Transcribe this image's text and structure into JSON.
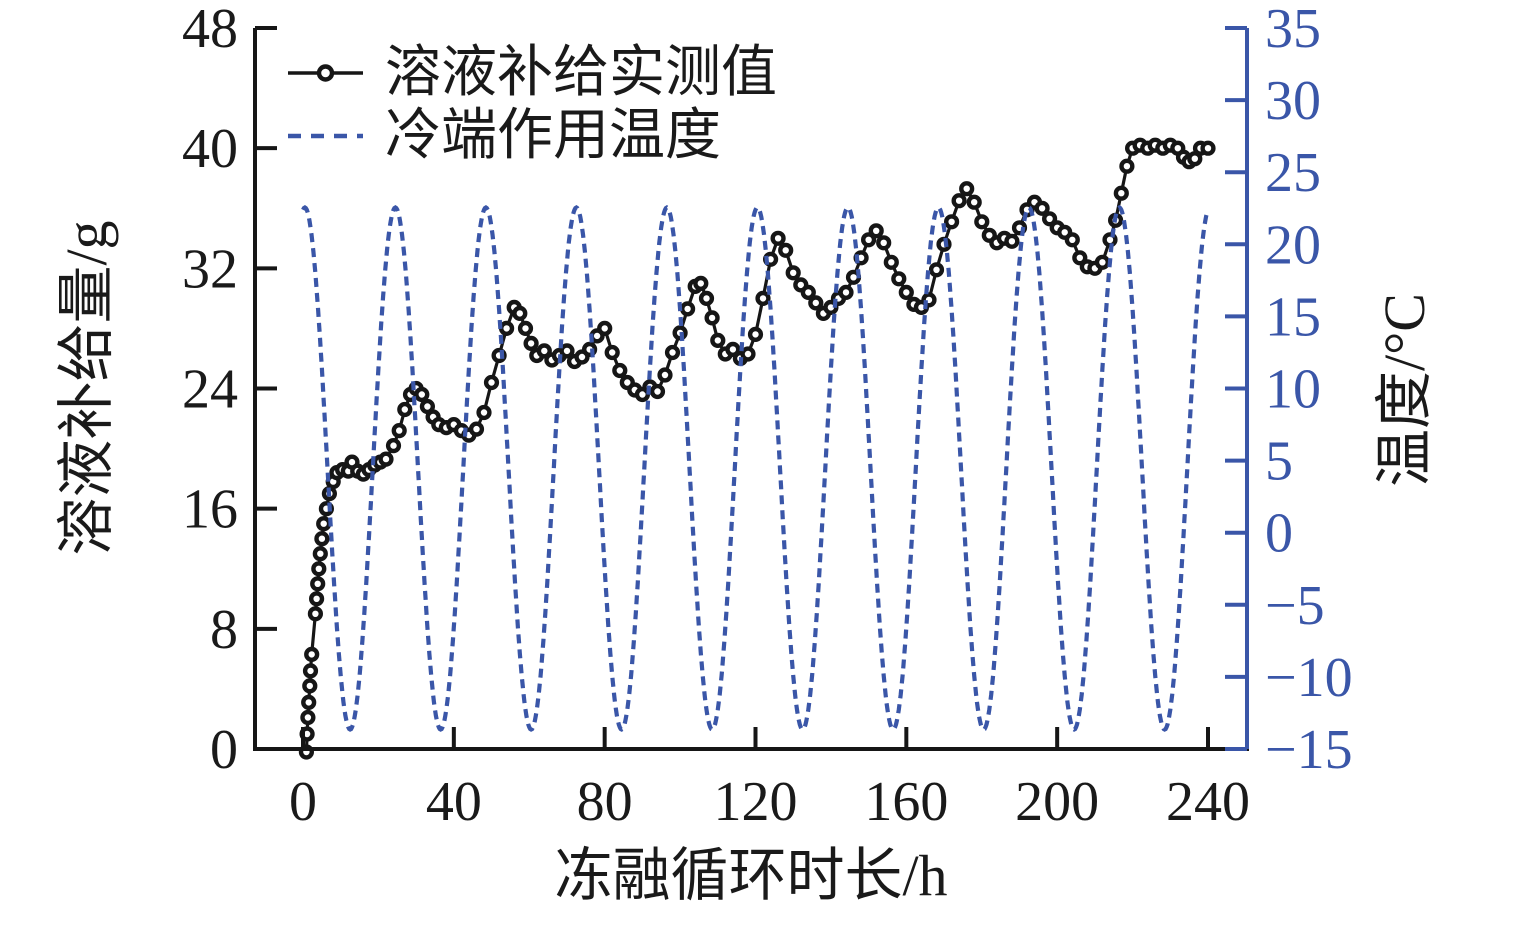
{
  "figure": {
    "background": "#ffffff",
    "accent_blue": "#3a56a8",
    "line_black": "#161616"
  },
  "chart_data": {
    "type": "line",
    "title": "",
    "xlabel": "冻融循环时长/h",
    "ylabel_left": "溶液补给量/g",
    "ylabel_right": "温度/°C",
    "xlim": [
      -12.7,
      250.4
    ],
    "ylim_left": [
      0,
      48
    ],
    "ylim_right": [
      -15,
      35
    ],
    "x_ticks": [
      0,
      40,
      80,
      120,
      160,
      200,
      240
    ],
    "y_left_ticks": [
      0,
      8,
      16,
      24,
      32,
      40,
      48
    ],
    "y_right_ticks": [
      -15,
      -10,
      -5,
      0,
      5,
      10,
      15,
      20,
      25,
      30,
      35
    ],
    "grid": false,
    "legend_position": "upper-left-inside",
    "series": [
      {
        "name": "溶液补给实测值",
        "axis": "left",
        "style": "solid-line-open-circle-markers",
        "color": "#161616",
        "points": [
          [
            0.9,
            -0.2
          ],
          [
            1.1,
            1.0
          ],
          [
            1.3,
            2.1
          ],
          [
            1.5,
            3.1
          ],
          [
            1.8,
            4.2
          ],
          [
            2.0,
            5.2
          ],
          [
            2.3,
            6.3
          ],
          [
            3.3,
            9.0
          ],
          [
            3.6,
            10.0
          ],
          [
            3.9,
            11.0
          ],
          [
            4.2,
            12.0
          ],
          [
            4.6,
            13.0
          ],
          [
            5.0,
            14.0
          ],
          [
            5.5,
            15.0
          ],
          [
            6.2,
            16.0
          ],
          [
            7.0,
            17.0
          ],
          [
            8.0,
            17.8
          ],
          [
            9.0,
            18.4
          ],
          [
            10.5,
            18.6
          ],
          [
            12.0,
            18.5
          ],
          [
            13.0,
            19.1
          ],
          [
            14.5,
            18.5
          ],
          [
            16.0,
            18.3
          ],
          [
            17.5,
            18.6
          ],
          [
            19.0,
            18.9
          ],
          [
            20.5,
            19.1
          ],
          [
            22.0,
            19.3
          ],
          [
            24.0,
            20.2
          ],
          [
            25.5,
            21.2
          ],
          [
            27.0,
            22.6
          ],
          [
            28.5,
            23.6
          ],
          [
            30.0,
            24.0
          ],
          [
            31.5,
            23.6
          ],
          [
            33.0,
            22.8
          ],
          [
            34.5,
            22.1
          ],
          [
            36.0,
            21.6
          ],
          [
            38.0,
            21.4
          ],
          [
            40.0,
            21.6
          ],
          [
            42.0,
            21.2
          ],
          [
            44.0,
            20.9
          ],
          [
            46.0,
            21.3
          ],
          [
            48.0,
            22.4
          ],
          [
            50.0,
            24.4
          ],
          [
            52.0,
            26.2
          ],
          [
            54.0,
            28.0
          ],
          [
            56.0,
            29.4
          ],
          [
            57.5,
            29.0
          ],
          [
            59.0,
            28.0
          ],
          [
            60.5,
            27.0
          ],
          [
            62.0,
            26.2
          ],
          [
            64.0,
            26.5
          ],
          [
            66.0,
            25.9
          ],
          [
            68.0,
            26.2
          ],
          [
            70.0,
            26.5
          ],
          [
            72.0,
            25.8
          ],
          [
            74.0,
            26.1
          ],
          [
            76.0,
            26.6
          ],
          [
            78.0,
            27.5
          ],
          [
            80.0,
            28.0
          ],
          [
            82.0,
            26.4
          ],
          [
            84.0,
            25.2
          ],
          [
            86.0,
            24.4
          ],
          [
            88.0,
            23.9
          ],
          [
            90.0,
            23.6
          ],
          [
            92.0,
            24.1
          ],
          [
            94.0,
            23.8
          ],
          [
            96.0,
            24.9
          ],
          [
            98.0,
            26.4
          ],
          [
            100.0,
            27.7
          ],
          [
            102.0,
            29.3
          ],
          [
            104.0,
            30.8
          ],
          [
            105.5,
            31.0
          ],
          [
            107.0,
            30.0
          ],
          [
            108.5,
            28.7
          ],
          [
            110.0,
            27.2
          ],
          [
            112.0,
            26.3
          ],
          [
            114.0,
            26.6
          ],
          [
            116.0,
            26.0
          ],
          [
            118.0,
            26.3
          ],
          [
            120.0,
            27.6
          ],
          [
            122.0,
            30.0
          ],
          [
            124.0,
            32.6
          ],
          [
            126.0,
            34.0
          ],
          [
            128.0,
            33.2
          ],
          [
            130.0,
            31.7
          ],
          [
            132.0,
            30.9
          ],
          [
            134.0,
            30.4
          ],
          [
            136.0,
            29.7
          ],
          [
            138.0,
            29.0
          ],
          [
            140.0,
            29.4
          ],
          [
            142.0,
            30.0
          ],
          [
            144.0,
            30.4
          ],
          [
            146.0,
            31.4
          ],
          [
            148.0,
            32.7
          ],
          [
            150.0,
            33.9
          ],
          [
            152.0,
            34.5
          ],
          [
            154.0,
            33.7
          ],
          [
            156.0,
            32.4
          ],
          [
            158.0,
            31.3
          ],
          [
            160.0,
            30.4
          ],
          [
            162.0,
            29.6
          ],
          [
            164.0,
            29.4
          ],
          [
            166.0,
            29.9
          ],
          [
            168.0,
            31.9
          ],
          [
            170.0,
            33.6
          ],
          [
            172.0,
            35.1
          ],
          [
            174.0,
            36.5
          ],
          [
            176.0,
            37.3
          ],
          [
            178.0,
            36.4
          ],
          [
            180.0,
            35.1
          ],
          [
            182.0,
            34.2
          ],
          [
            184.0,
            33.7
          ],
          [
            186.0,
            34.0
          ],
          [
            188.0,
            33.8
          ],
          [
            190.0,
            34.7
          ],
          [
            192.0,
            35.9
          ],
          [
            194.0,
            36.4
          ],
          [
            196.0,
            36.0
          ],
          [
            198.0,
            35.3
          ],
          [
            200.0,
            34.7
          ],
          [
            202.0,
            34.4
          ],
          [
            204.0,
            33.9
          ],
          [
            206.0,
            32.7
          ],
          [
            208.0,
            32.1
          ],
          [
            210.0,
            32.0
          ],
          [
            212.0,
            32.4
          ],
          [
            214.0,
            33.9
          ],
          [
            215.5,
            35.2
          ],
          [
            217.0,
            37.0
          ],
          [
            218.5,
            38.8
          ],
          [
            220.0,
            40.0
          ],
          [
            222.0,
            40.2
          ],
          [
            224.0,
            40.0
          ],
          [
            226.0,
            40.2
          ],
          [
            228.0,
            40.0
          ],
          [
            230.0,
            40.2
          ],
          [
            232.0,
            40.0
          ],
          [
            233.5,
            39.4
          ],
          [
            235.0,
            39.1
          ],
          [
            236.5,
            39.3
          ],
          [
            238.0,
            40.0
          ],
          [
            240.0,
            40.0
          ]
        ]
      },
      {
        "name": "冷端作用温度",
        "axis": "right",
        "style": "dashed-line",
        "color": "#3a56a8",
        "model": "cosine",
        "mean_c": 4.45,
        "amplitude_c": 18.1,
        "period_h": 24,
        "peak_time_h": 0.5,
        "t_start": 0,
        "t_end": 240,
        "max_c": 22.5,
        "min_c": -13.6
      }
    ]
  }
}
